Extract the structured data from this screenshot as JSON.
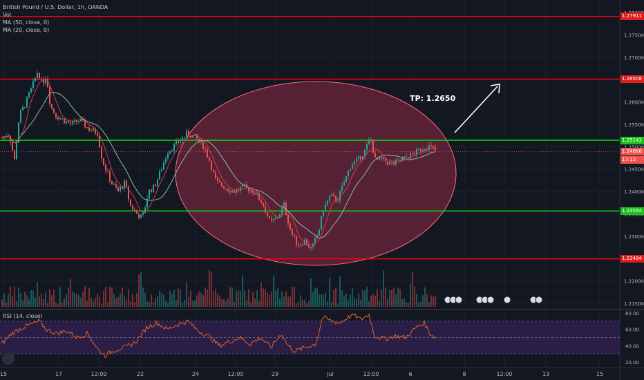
{
  "header": {
    "symbol": "British Pound / U.S. Dollar, 1h, OANDA",
    "indicators": [
      "Vol",
      "MA (50, close, 0)",
      "MA (20, close, 0)"
    ]
  },
  "rsi": {
    "label": "RSI (14, close)",
    "levels": [
      80,
      60,
      40,
      20
    ],
    "band": [
      30,
      70
    ]
  },
  "annotation": {
    "tp_text": "TP: 1.2650"
  },
  "colors": {
    "background": "#131722",
    "resistance": "#ff0000",
    "support": "#00e600",
    "ellipse_fill": "#8e2a45",
    "up_candle": "#26a69a",
    "down_candle": "#ef5350",
    "ma50": "#8fbcaa",
    "ma20": "#d0404a",
    "rsi_line": "#e0622a",
    "rsi_band": "#2a1e47"
  },
  "chart_data": {
    "type": "candlestick",
    "title": "British Pound / U.S. Dollar, 1h, OANDA",
    "y_axis": {
      "ticks": [
        "1.28000",
        "1.27500",
        "1.27000",
        "1.26500",
        "1.26000",
        "1.25500",
        "1.25000",
        "1.24500",
        "1.24000",
        "1.23500",
        "1.23000",
        "1.22500",
        "1.22000",
        "1.21500"
      ],
      "range": [
        1.2135,
        1.2815
      ]
    },
    "x_axis": {
      "ticks": [
        "15",
        "17",
        "12:00",
        "22",
        "24",
        "12:00",
        "29",
        "Jul",
        "12:00",
        "6",
        "8",
        "12:00",
        "13",
        "15"
      ]
    },
    "horizontal_levels": [
      {
        "price": 1.27911,
        "label": "1.27911",
        "kind": "resistance"
      },
      {
        "price": 1.26508,
        "label": "1.26508",
        "kind": "resistance"
      },
      {
        "price": 1.25143,
        "label": "1.25143",
        "kind": "support"
      },
      {
        "price": 1.23564,
        "label": "1.23564",
        "kind": "support"
      },
      {
        "price": 1.22494,
        "label": "1.22494",
        "kind": "resistance"
      }
    ],
    "last_price": {
      "value": "1.24886",
      "countdown": "17:12"
    },
    "price_path": [
      [
        0,
        1.252
      ],
      [
        10,
        1.253
      ],
      [
        18,
        1.247
      ],
      [
        25,
        1.257
      ],
      [
        35,
        1.26
      ],
      [
        45,
        1.264
      ],
      [
        52,
        1.267
      ],
      [
        58,
        1.264
      ],
      [
        64,
        1.266
      ],
      [
        70,
        1.259
      ],
      [
        78,
        1.257
      ],
      [
        88,
        1.256
      ],
      [
        100,
        1.255
      ],
      [
        112,
        1.256
      ],
      [
        125,
        1.254
      ],
      [
        138,
        1.253
      ],
      [
        145,
        1.247
      ],
      [
        150,
        1.245
      ],
      [
        158,
        1.242
      ],
      [
        168,
        1.24
      ],
      [
        178,
        1.242
      ],
      [
        185,
        1.237
      ],
      [
        195,
        1.235
      ],
      [
        203,
        1.234
      ],
      [
        212,
        1.24
      ],
      [
        220,
        1.241
      ],
      [
        228,
        1.244
      ],
      [
        240,
        1.249
      ],
      [
        255,
        1.251
      ],
      [
        268,
        1.253
      ],
      [
        280,
        1.252
      ],
      [
        292,
        1.25
      ],
      [
        300,
        1.247
      ],
      [
        310,
        1.242
      ],
      [
        322,
        1.241
      ],
      [
        335,
        1.24
      ],
      [
        350,
        1.241
      ],
      [
        365,
        1.24
      ],
      [
        378,
        1.237
      ],
      [
        388,
        1.233
      ],
      [
        398,
        1.234
      ],
      [
        408,
        1.237
      ],
      [
        418,
        1.231
      ],
      [
        428,
        1.228
      ],
      [
        438,
        1.229
      ],
      [
        448,
        1.227
      ],
      [
        458,
        1.231
      ],
      [
        465,
        1.236
      ],
      [
        475,
        1.239
      ],
      [
        485,
        1.238
      ],
      [
        495,
        1.242
      ],
      [
        505,
        1.246
      ],
      [
        515,
        1.247
      ],
      [
        525,
        1.249
      ],
      [
        533,
        1.252
      ],
      [
        540,
        1.247
      ],
      [
        552,
        1.247
      ],
      [
        565,
        1.246
      ],
      [
        578,
        1.247
      ],
      [
        590,
        1.248
      ],
      [
        602,
        1.249
      ],
      [
        612,
        1.25
      ],
      [
        620,
        1.25
      ],
      [
        628,
        1.2489
      ]
    ],
    "rsi_values": [
      [
        0,
        42
      ],
      [
        15,
        55
      ],
      [
        30,
        62
      ],
      [
        45,
        67
      ],
      [
        55,
        70
      ],
      [
        65,
        60
      ],
      [
        80,
        55
      ],
      [
        95,
        58
      ],
      [
        110,
        50
      ],
      [
        125,
        55
      ],
      [
        140,
        35
      ],
      [
        150,
        28
      ],
      [
        165,
        35
      ],
      [
        180,
        38
      ],
      [
        195,
        45
      ],
      [
        210,
        62
      ],
      [
        225,
        68
      ],
      [
        240,
        60
      ],
      [
        255,
        66
      ],
      [
        270,
        70
      ],
      [
        285,
        58
      ],
      [
        300,
        52
      ],
      [
        315,
        40
      ],
      [
        330,
        45
      ],
      [
        345,
        50
      ],
      [
        360,
        42
      ],
      [
        375,
        50
      ],
      [
        390,
        38
      ],
      [
        405,
        55
      ],
      [
        415,
        40
      ],
      [
        425,
        33
      ],
      [
        440,
        38
      ],
      [
        455,
        42
      ],
      [
        465,
        75
      ],
      [
        478,
        70
      ],
      [
        490,
        68
      ],
      [
        500,
        74
      ],
      [
        510,
        78
      ],
      [
        520,
        72
      ],
      [
        532,
        78
      ],
      [
        540,
        52
      ],
      [
        555,
        48
      ],
      [
        570,
        52
      ],
      [
        585,
        50
      ],
      [
        600,
        62
      ],
      [
        612,
        68
      ],
      [
        620,
        55
      ],
      [
        628,
        50
      ]
    ]
  }
}
